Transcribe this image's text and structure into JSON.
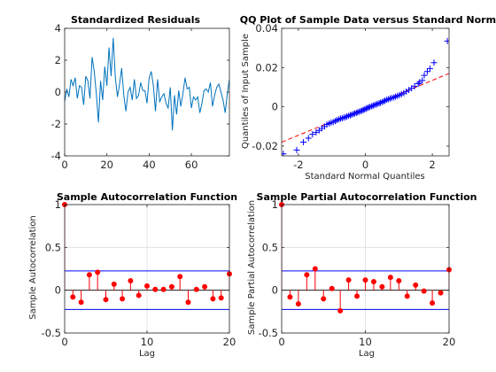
{
  "chart_data": [
    {
      "id": "residuals",
      "type": "line",
      "title": "Standardized Residuals",
      "xlabel": "",
      "ylabel": "",
      "xlim": [
        0,
        78
      ],
      "ylim": [
        -4,
        4
      ],
      "xticks": [
        0,
        20,
        40,
        60
      ],
      "yticks": [
        -4,
        -2,
        0,
        2,
        4
      ],
      "grid": false,
      "color": "#0072BD",
      "values": [
        -0.6,
        0.2,
        -0.3,
        0.8,
        0.4,
        0.9,
        -0.4,
        0.4,
        0.3,
        -0.8,
        1.0,
        0.7,
        -0.4,
        2.2,
        1.3,
        -0.1,
        -1.9,
        0.7,
        -0.5,
        1.6,
        0.4,
        2.8,
        1.0,
        3.4,
        0.9,
        -0.3,
        0.5,
        1.5,
        -0.2,
        -1.2,
        0.0,
        0.3,
        -0.5,
        0.8,
        -0.4,
        -0.2,
        0.6,
        0.1,
        0.1,
        -0.7,
        0.9,
        1.3,
        0.4,
        -1.2,
        0.8,
        -0.6,
        -0.3,
        -0.1,
        -0.7,
        -1.0,
        0.3,
        -2.4,
        -0.2,
        -1.4,
        0.1,
        -0.9,
        -0.1,
        0.9,
        0.2,
        0.3,
        -1.0,
        -0.3,
        -0.5,
        -0.3,
        -1.3,
        -0.7,
        0.1,
        0.2,
        0.0,
        0.6,
        -0.9,
        -0.2,
        0.3,
        0.5,
        0.0,
        -0.5,
        -1.3,
        -0.1,
        0.8
      ]
    },
    {
      "id": "qq",
      "type": "scatter",
      "title": "QQ Plot of Sample Data versus Standard Normal",
      "xlabel": "Standard Normal Quantiles",
      "ylabel": "Quantiles of Input Sample",
      "xlim": [
        -2.5,
        2.5
      ],
      "ylim": [
        -0.025,
        0.04
      ],
      "xticks": [
        -2,
        0,
        2
      ],
      "yticks": [
        -0.02,
        0,
        0.02,
        0.04
      ],
      "grid": false,
      "marker_color": "#0000FF",
      "reference_line": {
        "color": "#FF0000",
        "x": [
          -2.5,
          2.5
        ],
        "y": [
          -0.018,
          0.017
        ]
      },
      "points": [
        [
          -2.45,
          -0.024
        ],
        [
          -2.05,
          -0.022
        ],
        [
          -1.85,
          -0.018
        ],
        [
          -1.7,
          -0.016
        ],
        [
          -1.58,
          -0.014
        ],
        [
          -1.47,
          -0.013
        ],
        [
          -1.38,
          -0.012
        ],
        [
          -1.3,
          -0.011
        ],
        [
          -1.22,
          -0.01
        ],
        [
          -1.15,
          -0.009
        ],
        [
          -1.08,
          -0.0085
        ],
        [
          -1.02,
          -0.008
        ],
        [
          -0.96,
          -0.0078
        ],
        [
          -0.9,
          -0.0073
        ],
        [
          -0.85,
          -0.0068
        ],
        [
          -0.79,
          -0.0064
        ],
        [
          -0.74,
          -0.006
        ],
        [
          -0.69,
          -0.0058
        ],
        [
          -0.64,
          -0.0055
        ],
        [
          -0.59,
          -0.0052
        ],
        [
          -0.55,
          -0.0049
        ],
        [
          -0.5,
          -0.0046
        ],
        [
          -0.45,
          -0.0043
        ],
        [
          -0.41,
          -0.004
        ],
        [
          -0.36,
          -0.0037
        ],
        [
          -0.32,
          -0.0034
        ],
        [
          -0.27,
          -0.0031
        ],
        [
          -0.23,
          -0.0028
        ],
        [
          -0.19,
          -0.0025
        ],
        [
          -0.14,
          -0.0022
        ],
        [
          -0.1,
          -0.0019
        ],
        [
          -0.06,
          -0.0016
        ],
        [
          -0.02,
          -0.0013
        ],
        [
          0.02,
          -0.0009
        ],
        [
          0.06,
          -0.0006
        ],
        [
          0.1,
          -0.0003
        ],
        [
          0.14,
          0.0
        ],
        [
          0.19,
          0.0003
        ],
        [
          0.23,
          0.0006
        ],
        [
          0.27,
          0.0009
        ],
        [
          0.32,
          0.0012
        ],
        [
          0.36,
          0.0015
        ],
        [
          0.41,
          0.0018
        ],
        [
          0.45,
          0.0021
        ],
        [
          0.5,
          0.0024
        ],
        [
          0.55,
          0.0028
        ],
        [
          0.59,
          0.0032
        ],
        [
          0.64,
          0.0036
        ],
        [
          0.69,
          0.0039
        ],
        [
          0.74,
          0.0042
        ],
        [
          0.79,
          0.0045
        ],
        [
          0.85,
          0.0048
        ],
        [
          0.9,
          0.0052
        ],
        [
          0.96,
          0.0056
        ],
        [
          1.02,
          0.006
        ],
        [
          1.08,
          0.0065
        ],
        [
          1.15,
          0.007
        ],
        [
          1.22,
          0.0078
        ],
        [
          1.3,
          0.0086
        ],
        [
          1.38,
          0.0095
        ],
        [
          1.47,
          0.0105
        ],
        [
          1.58,
          0.0118
        ],
        [
          1.7,
          0.0135
        ],
        [
          1.85,
          0.018
        ],
        [
          2.05,
          0.0225
        ],
        [
          2.45,
          0.0335
        ],
        [
          1.62,
          0.0125
        ],
        [
          1.76,
          0.016
        ],
        [
          1.93,
          0.0195
        ]
      ]
    },
    {
      "id": "acf",
      "type": "stem",
      "title": "Sample Autocorrelation Function",
      "xlabel": "Lag",
      "ylabel": "Sample Autocorrelation",
      "xlim": [
        0,
        20
      ],
      "ylim": [
        -0.5,
        1
      ],
      "xticks": [
        0,
        10,
        20
      ],
      "yticks": [
        -0.5,
        0,
        0.5,
        1
      ],
      "grid": true,
      "stem_color": "#FF0000",
      "bound_color": "#0000FF",
      "bounds": [
        0.225,
        -0.225
      ],
      "lags": [
        0,
        1,
        2,
        3,
        4,
        5,
        6,
        7,
        8,
        9,
        10,
        11,
        12,
        13,
        14,
        15,
        16,
        17,
        18,
        19,
        20
      ],
      "values": [
        1.0,
        -0.08,
        -0.14,
        0.18,
        0.21,
        -0.11,
        0.07,
        -0.1,
        0.11,
        -0.06,
        0.05,
        0.01,
        0.01,
        0.04,
        0.16,
        -0.14,
        0.01,
        0.04,
        -0.1,
        -0.09,
        0.19
      ]
    },
    {
      "id": "pacf",
      "type": "stem",
      "title": "Sample Partial Autocorrelation Function",
      "xlabel": "Lag",
      "ylabel": "Sample Partial Autocorrelation",
      "xlim": [
        0,
        20
      ],
      "ylim": [
        -0.5,
        1
      ],
      "xticks": [
        0,
        10,
        20
      ],
      "yticks": [
        -0.5,
        0,
        0.5,
        1
      ],
      "grid": true,
      "stem_color": "#FF0000",
      "bound_color": "#0000FF",
      "bounds": [
        0.225,
        -0.225
      ],
      "lags": [
        0,
        1,
        2,
        3,
        4,
        5,
        6,
        7,
        8,
        9,
        10,
        11,
        12,
        13,
        14,
        15,
        16,
        17,
        18,
        19,
        20
      ],
      "values": [
        1.0,
        -0.08,
        -0.16,
        0.18,
        0.25,
        -0.1,
        0.02,
        -0.24,
        0.12,
        -0.07,
        0.12,
        0.1,
        0.04,
        0.15,
        0.11,
        -0.07,
        0.06,
        -0.01,
        -0.15,
        -0.03,
        0.24
      ]
    }
  ]
}
